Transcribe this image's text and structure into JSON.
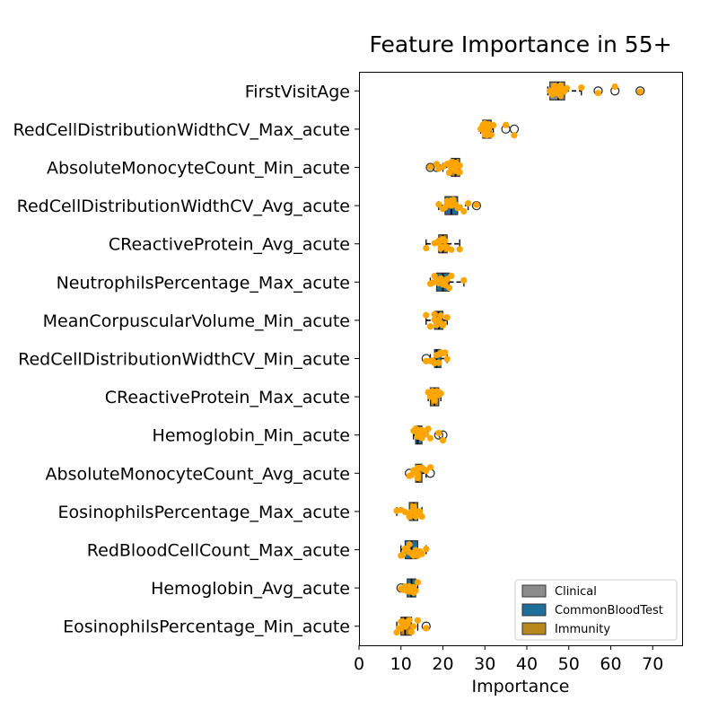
{
  "chart_data": {
    "type": "boxplot",
    "title": "Feature Importance in 55+",
    "xlabel": "Importance",
    "xlim": [
      0,
      77
    ],
    "xticks": [
      0,
      10,
      20,
      30,
      40,
      50,
      60,
      70
    ],
    "legend": {
      "placement": "lower-right",
      "entries": [
        {
          "name": "Clinical",
          "color": "#8c8c8c"
        },
        {
          "name": "CommonBloodTest",
          "color": "#1f6e99"
        },
        {
          "name": "Immunity",
          "color": "#b8861b"
        }
      ]
    },
    "point_color": "#ffa500",
    "features": [
      {
        "name": "FirstVisitAge",
        "group": "Clinical",
        "box": {
          "q1": 45.5,
          "median": 47.5,
          "q3": 49,
          "whisker_low": 45,
          "whisker_high": 53
        },
        "outliers": [
          57,
          61,
          67
        ],
        "points": [
          45.5,
          46,
          46.5,
          47,
          47,
          47.5,
          48,
          48,
          48.5,
          49,
          49.5,
          46,
          47,
          48,
          49,
          53,
          57,
          61,
          67
        ]
      },
      {
        "name": "RedCellDistributionWidthCV_Max_acute",
        "group": "CommonBloodTest",
        "box": {
          "q1": 29.5,
          "median": 30,
          "q3": 31.5,
          "whisker_low": 29,
          "whisker_high": 32
        },
        "outliers": [
          35,
          37
        ],
        "points": [
          29,
          29.5,
          30,
          30,
          30.5,
          31,
          31,
          31.5,
          32,
          30,
          29.5,
          30.5,
          31,
          35,
          37
        ]
      },
      {
        "name": "AbsoluteMonocyteCount_Min_acute",
        "group": "Immunity",
        "box": {
          "q1": 22,
          "median": 23,
          "q3": 24,
          "whisker_low": 20,
          "whisker_high": 24
        },
        "outliers": [
          17,
          18.5
        ],
        "points": [
          20,
          21,
          22,
          22.5,
          23,
          23,
          23.5,
          24,
          22,
          21.5,
          23,
          24,
          17,
          18.5,
          19
        ]
      },
      {
        "name": "RedCellDistributionWidthCV_Avg_acute",
        "group": "CommonBloodTest",
        "box": {
          "q1": 20.5,
          "median": 22,
          "q3": 23.5,
          "whisker_low": 19,
          "whisker_high": 26
        },
        "outliers": [
          28
        ],
        "points": [
          19,
          20,
          20.5,
          21,
          21.5,
          22,
          22,
          22.5,
          23,
          23.5,
          24,
          25,
          26,
          21,
          22,
          28
        ]
      },
      {
        "name": "CReactiveProtein_Avg_acute",
        "group": "Immunity",
        "box": {
          "q1": 19,
          "median": 20,
          "q3": 21,
          "whisker_low": 16,
          "whisker_high": 24
        },
        "outliers": [],
        "points": [
          16,
          18,
          19,
          19,
          19.5,
          20,
          20,
          20.5,
          21,
          21,
          22,
          24,
          19.5,
          20.5
        ]
      },
      {
        "name": "NeutrophilsPercentage_Max_acute",
        "group": "CommonBloodTest",
        "box": {
          "q1": 18.5,
          "median": 20,
          "q3": 21.5,
          "whisker_low": 17,
          "whisker_high": 25
        },
        "outliers": [],
        "points": [
          17,
          17.5,
          18,
          18.5,
          19,
          19.5,
          20,
          20,
          20.5,
          21,
          21.5,
          22,
          25,
          19,
          20.5
        ]
      },
      {
        "name": "MeanCorpuscularVolume_Min_acute",
        "group": "CommonBloodTest",
        "box": {
          "q1": 18,
          "median": 19,
          "q3": 20,
          "whisker_low": 16,
          "whisker_high": 21
        },
        "outliers": [],
        "points": [
          16,
          17,
          18,
          18.5,
          19,
          19,
          19.5,
          20,
          20,
          21,
          18,
          19.5
        ]
      },
      {
        "name": "RedCellDistributionWidthCV_Min_acute",
        "group": "CommonBloodTest",
        "box": {
          "q1": 18,
          "median": 18.5,
          "q3": 19.5,
          "whisker_low": 17,
          "whisker_high": 21
        },
        "outliers": [
          16
        ],
        "points": [
          16,
          17,
          17.5,
          18,
          18.5,
          19,
          19,
          19.5,
          20,
          20.5,
          21,
          18,
          19
        ]
      },
      {
        "name": "CReactiveProtein_Max_acute",
        "group": "Immunity",
        "box": {
          "q1": 17,
          "median": 18,
          "q3": 19,
          "whisker_low": 16.5,
          "whisker_high": 19.5
        },
        "outliers": [],
        "points": [
          16.5,
          17,
          17.5,
          18,
          18,
          18.5,
          19,
          19.5,
          17,
          18,
          19
        ]
      },
      {
        "name": "Hemoglobin_Min_acute",
        "group": "CommonBloodTest",
        "box": {
          "q1": 13.5,
          "median": 14,
          "q3": 15,
          "whisker_low": 13,
          "whisker_high": 16.5
        },
        "outliers": [
          19,
          20
        ],
        "points": [
          13,
          13.5,
          14,
          14,
          14.5,
          15,
          15.5,
          16,
          16.5,
          17,
          14,
          15,
          19,
          20
        ]
      },
      {
        "name": "AbsoluteMonocyteCount_Avg_acute",
        "group": "Immunity",
        "box": {
          "q1": 13.5,
          "median": 14,
          "q3": 15,
          "whisker_low": 12.5,
          "whisker_high": 16
        },
        "outliers": [
          12,
          17
        ],
        "points": [
          12,
          12.5,
          13,
          13.5,
          14,
          14,
          14.5,
          15,
          15.5,
          16,
          17,
          14
        ]
      },
      {
        "name": "EosinophilsPercentage_Max_acute",
        "group": "Immunity",
        "box": {
          "q1": 12,
          "median": 13,
          "q3": 14,
          "whisker_low": 9,
          "whisker_high": 15
        },
        "outliers": [],
        "points": [
          9,
          10,
          11,
          12,
          12.5,
          13,
          13,
          13.5,
          14,
          14.5,
          15,
          12,
          13.5
        ]
      },
      {
        "name": "RedBloodCellCount_Max_acute",
        "group": "CommonBloodTest",
        "box": {
          "q1": 11,
          "median": 12.5,
          "q3": 14,
          "whisker_low": 10,
          "whisker_high": 16
        },
        "outliers": [],
        "points": [
          10,
          10.5,
          11,
          11.5,
          12,
          12.5,
          13,
          13.5,
          14,
          14.5,
          15,
          16,
          12,
          13
        ]
      },
      {
        "name": "Hemoglobin_Avg_acute",
        "group": "CommonBloodTest",
        "box": {
          "q1": 11.5,
          "median": 12.5,
          "q3": 13.5,
          "whisker_low": 10.5,
          "whisker_high": 14
        },
        "outliers": [
          10
        ],
        "points": [
          10,
          10.5,
          11,
          11.5,
          12,
          12.5,
          13,
          13,
          13.5,
          14,
          12,
          12.5
        ]
      },
      {
        "name": "EosinophilsPercentage_Min_acute",
        "group": "Immunity",
        "box": {
          "q1": 10,
          "median": 11,
          "q3": 12.5,
          "whisker_low": 9,
          "whisker_high": 14
        },
        "outliers": [
          16
        ],
        "points": [
          9,
          9.5,
          10,
          10,
          10.5,
          11,
          11,
          11.5,
          12,
          12.5,
          13,
          14,
          10.5,
          11.5,
          16
        ]
      }
    ]
  }
}
